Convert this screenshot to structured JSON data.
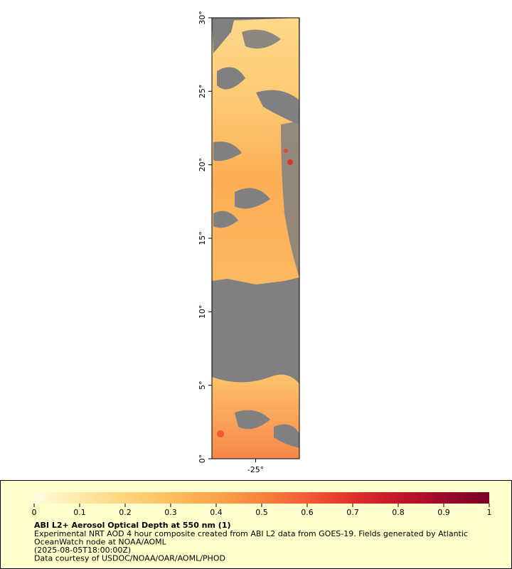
{
  "map": {
    "ylim": [
      0,
      30
    ],
    "yticks": [
      {
        "value": 0,
        "label": "0°"
      },
      {
        "value": 5,
        "label": "5°"
      },
      {
        "value": 10,
        "label": "10°"
      },
      {
        "value": 15,
        "label": "15°"
      },
      {
        "value": 20,
        "label": "20°"
      },
      {
        "value": 25,
        "label": "25°"
      },
      {
        "value": 30,
        "label": "30°"
      }
    ],
    "xlim": [
      -28,
      -22
    ],
    "xticks": [
      {
        "value": -25,
        "label": "-25°"
      }
    ]
  },
  "colorbar": {
    "lim": [
      0,
      1
    ],
    "ticks": [
      0,
      0.1,
      0.2,
      0.3,
      0.4,
      0.5,
      0.6,
      0.7,
      0.8,
      0.9,
      1
    ],
    "colors": [
      "#fffde0",
      "#fee9a8",
      "#fdd57e",
      "#fdbe5e",
      "#fca449",
      "#f9823e",
      "#f25c36",
      "#e0302a",
      "#c4162a",
      "#9c0a2c",
      "#7a0026"
    ]
  },
  "legend": {
    "title": "ABI L2+ Aerosol Optical Depth at 550 nm (1)",
    "lines": [
      "Experimental NRT AOD 4 hour composite created from ABI L2 data from GOES-19. Fields generated by Atlantic",
      "OceanWatch node at NOAA/AOML",
      "(2025-08-05T18:00:00Z)",
      "Data courtesy of USDOC/NOAA/OAR/AOML/PHOD"
    ]
  }
}
